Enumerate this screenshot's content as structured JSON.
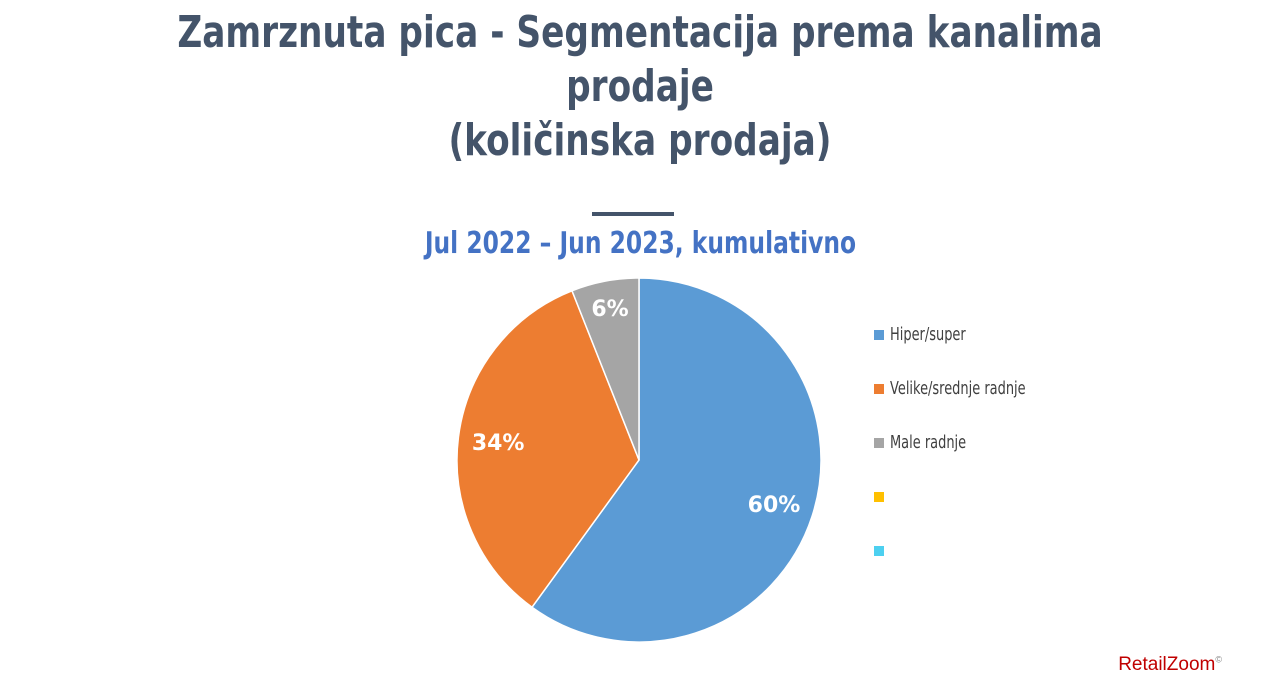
{
  "title_line1": "Zamrznuta pica - Segmentacija prema kanalima prodaje",
  "title_line2": "(količinska prodaja)",
  "subtitle": "Jul 2022 – Jun 2023, kumulativno",
  "logo": {
    "text": "RetailZoom",
    "mark": "©"
  },
  "chart_data": {
    "type": "pie",
    "title": "Jul 2022 – Jun 2023, kumulativno",
    "legend_position": "right",
    "slices": [
      {
        "name": "Hiper/super",
        "value": 60,
        "label": "60%",
        "color": "#5b9bd5"
      },
      {
        "name": "Velike/srednje radnje",
        "value": 34,
        "label": "34%",
        "color": "#ed7d31"
      },
      {
        "name": "Male radnje",
        "value": 6,
        "label": "6%",
        "color": "#a5a5a5"
      }
    ],
    "legend": [
      {
        "label": "Hiper/super",
        "color": "#5b9bd5"
      },
      {
        "label": "Velike/srednje radnje",
        "color": "#ed7d31"
      },
      {
        "label": "Male radnje",
        "color": "#a5a5a5"
      },
      {
        "label": "",
        "color": "#ffc000"
      },
      {
        "label": "",
        "color": "#4dd0f0"
      }
    ]
  }
}
